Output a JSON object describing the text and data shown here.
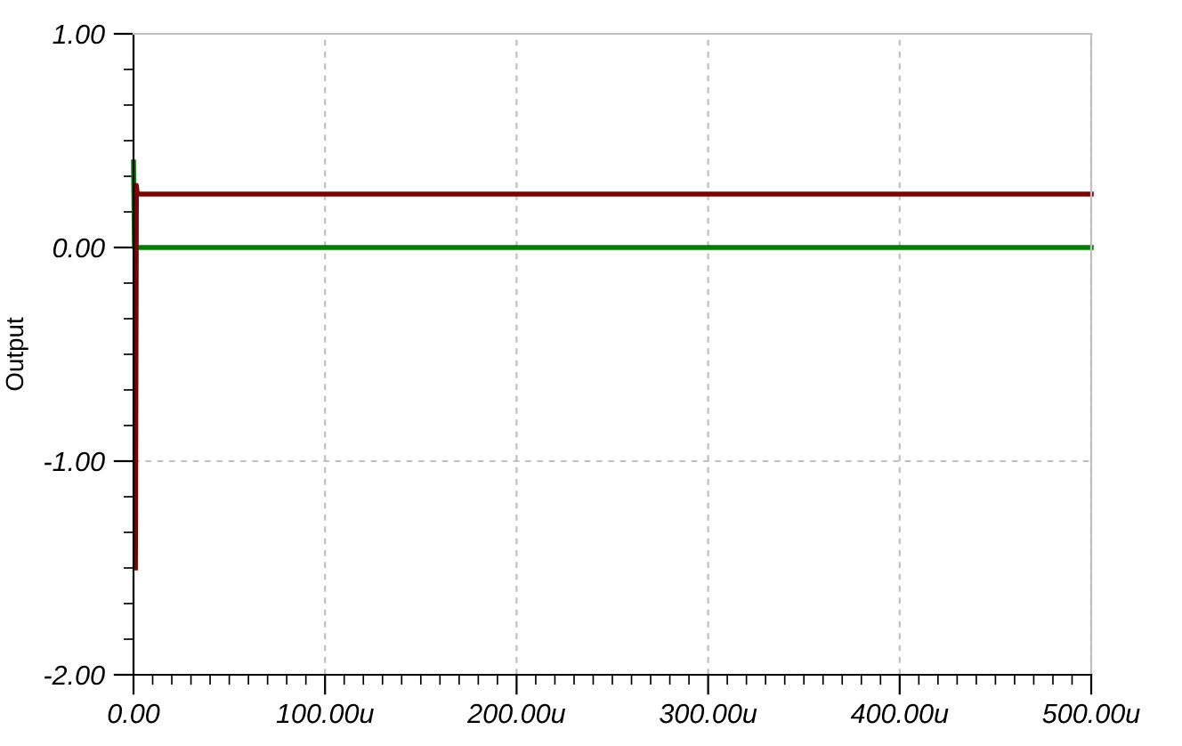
{
  "chart_data": {
    "type": "line",
    "ylabel": "Output",
    "series": [
      {
        "color": "#008000",
        "x": [
          0,
          0.5,
          500
        ],
        "values": [
          0.4,
          0,
          0
        ]
      },
      {
        "color": "#800000",
        "x": [
          1,
          1.5,
          2,
          500
        ],
        "values": [
          -1.5,
          0.29,
          0.25,
          0.25
        ]
      }
    ],
    "xlim": [
      0,
      500
    ],
    "ylim": [
      -2,
      1
    ],
    "xticks": [
      {
        "value": 0,
        "label": "0.00"
      },
      {
        "value": 100,
        "label": "100.00u"
      },
      {
        "value": 200,
        "label": "200.00u"
      },
      {
        "value": 300,
        "label": "300.00u"
      },
      {
        "value": 400,
        "label": "400.00u"
      },
      {
        "value": 500,
        "label": "500.00u"
      }
    ],
    "yticks": [
      {
        "value": -2,
        "label": "-2.00"
      },
      {
        "value": -1,
        "label": "-1.00"
      },
      {
        "value": 0,
        "label": "0.00"
      },
      {
        "value": 1,
        "label": "1.00"
      }
    ],
    "grid": true,
    "marker": "none",
    "line_style": "solid"
  }
}
